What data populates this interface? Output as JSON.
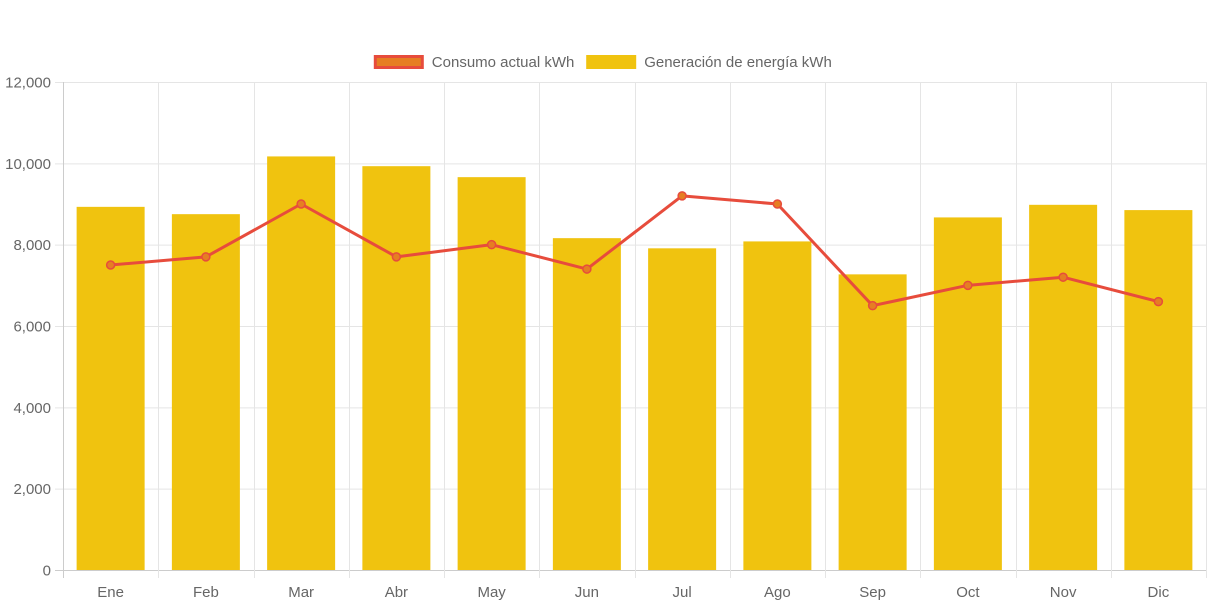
{
  "chart_data": {
    "type": "bar",
    "categories": [
      "Ene",
      "Feb",
      "Mar",
      "Abr",
      "May",
      "Jun",
      "Jul",
      "Ago",
      "Sep",
      "Oct",
      "Nov",
      "Dic"
    ],
    "series": [
      {
        "name": "Generación de energía kWh",
        "type": "bar",
        "color": "#f0c30f",
        "values": [
          8930,
          8750,
          10170,
          9930,
          9660,
          8160,
          7910,
          8080,
          7270,
          8670,
          8980,
          8850
        ]
      },
      {
        "name": "Consumo actual kWh",
        "type": "line",
        "color": "#e74c3c",
        "fill_color": "#e67e22",
        "values": [
          7500,
          7700,
          9000,
          7700,
          8000,
          7400,
          9200,
          9000,
          6500,
          7000,
          7200,
          6600
        ]
      }
    ],
    "legend_order": [
      "Consumo actual kWh",
      "Generación de energía kWh"
    ],
    "y_ticks": [
      "0",
      "2,000",
      "4,000",
      "6,000",
      "8,000",
      "10,000",
      "12,000"
    ],
    "ylim": [
      0,
      12000
    ],
    "y_step": 2000,
    "grid": true,
    "legend_position": "top-center",
    "title": "",
    "xlabel": "",
    "ylabel": ""
  }
}
